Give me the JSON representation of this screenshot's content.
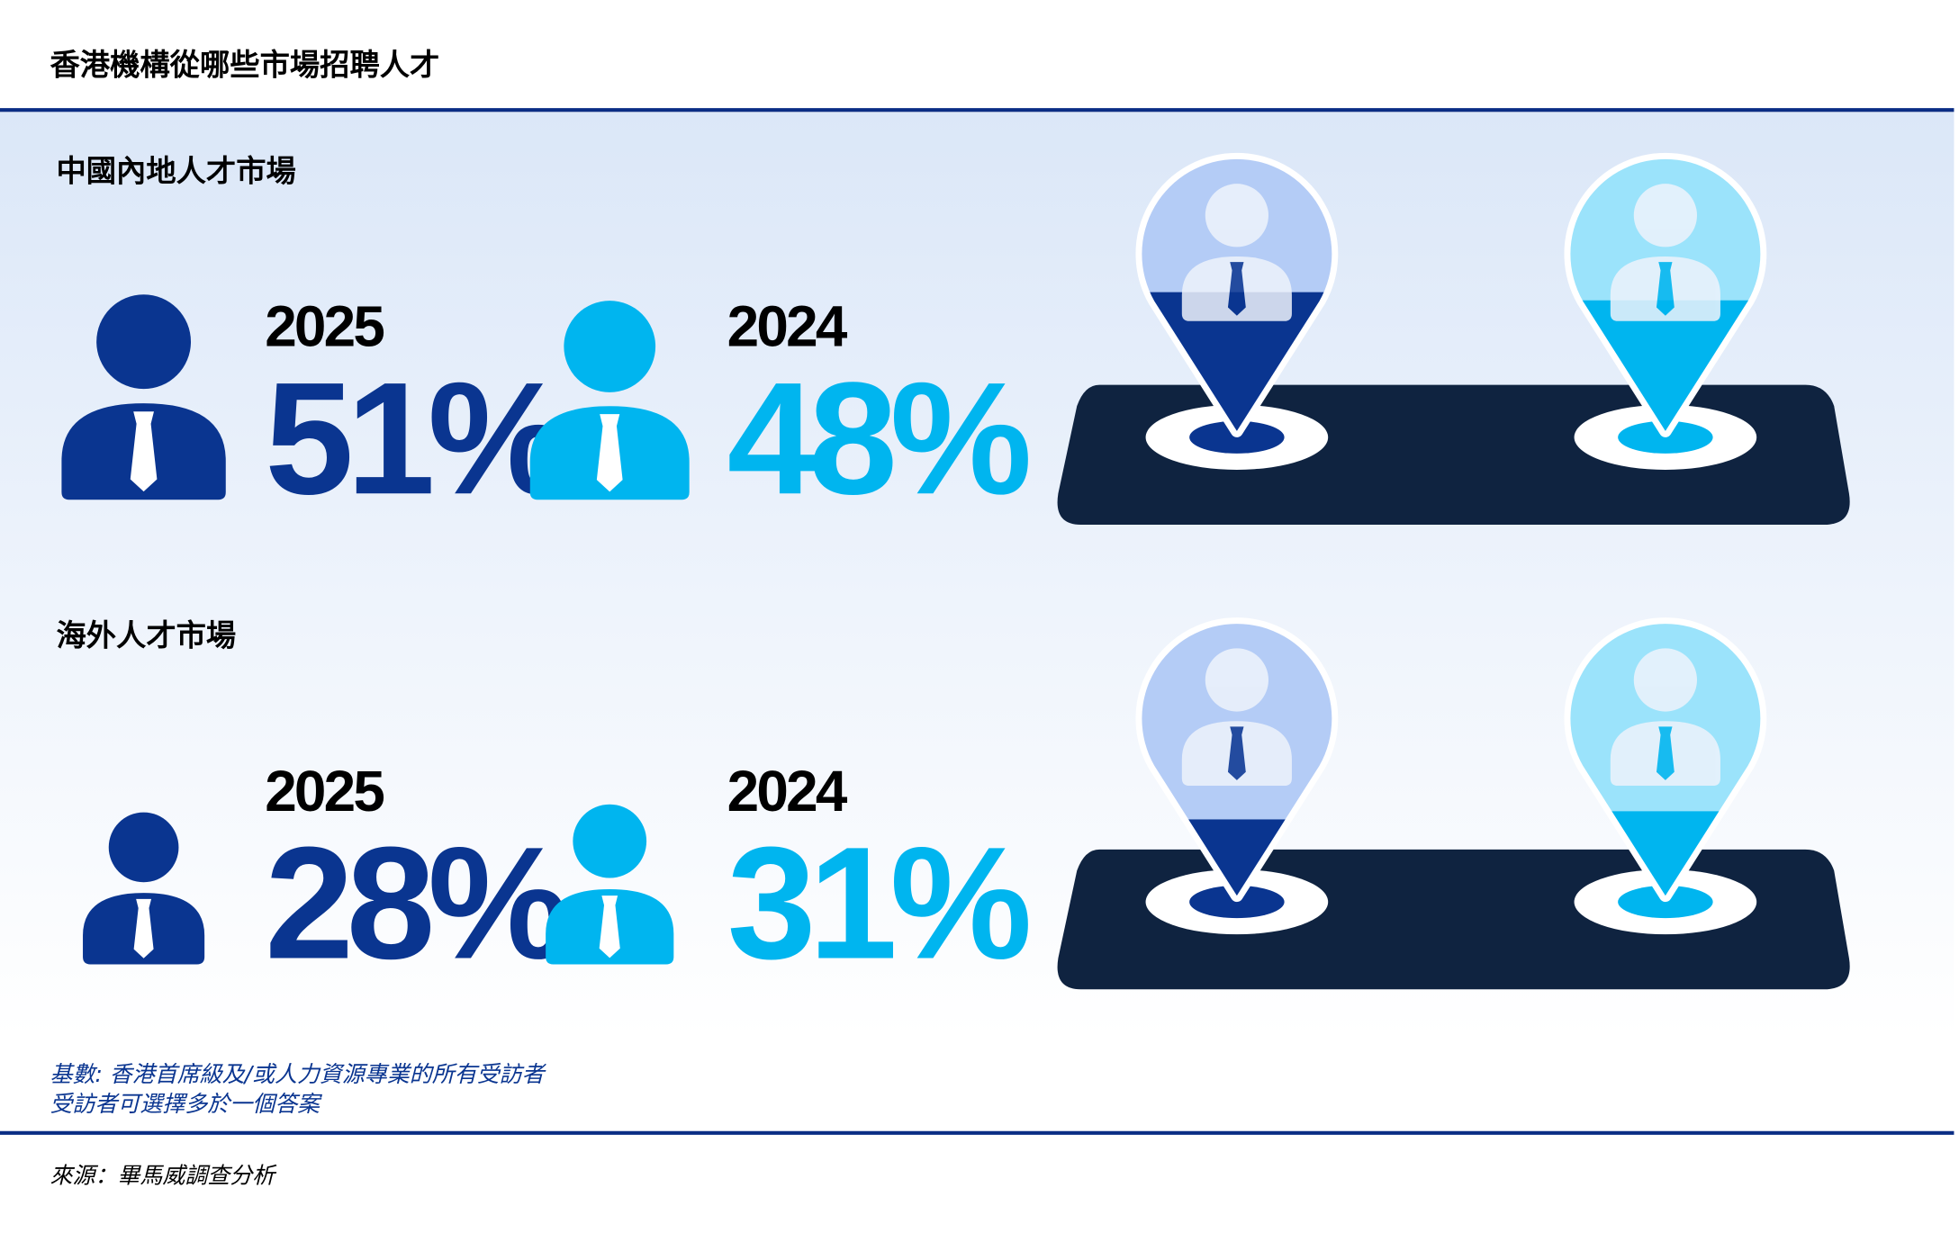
{
  "title": "香港機構從哪些市場招聘人才",
  "sections": [
    {
      "heading": "中國內地人才市場",
      "categories": [
        "2025",
        "2024"
      ],
      "values": [
        51,
        48
      ],
      "value_labels": [
        "51%",
        "48%"
      ]
    },
    {
      "heading": "海外人才市場",
      "categories": [
        "2025",
        "2024"
      ],
      "values": [
        28,
        31
      ],
      "value_labels": [
        "28%",
        "31%"
      ]
    }
  ],
  "colors": [
    "#0a3590",
    "#00b5ef"
  ],
  "pin_colors": [
    "#b4ccf6",
    "#9be3fb"
  ],
  "notes": [
    "基數: 香港首席級及/或人力資源專業的所有受訪者",
    "受訪者可選擇多於一個答案"
  ],
  "source": "來源：畢馬威調查分析"
}
